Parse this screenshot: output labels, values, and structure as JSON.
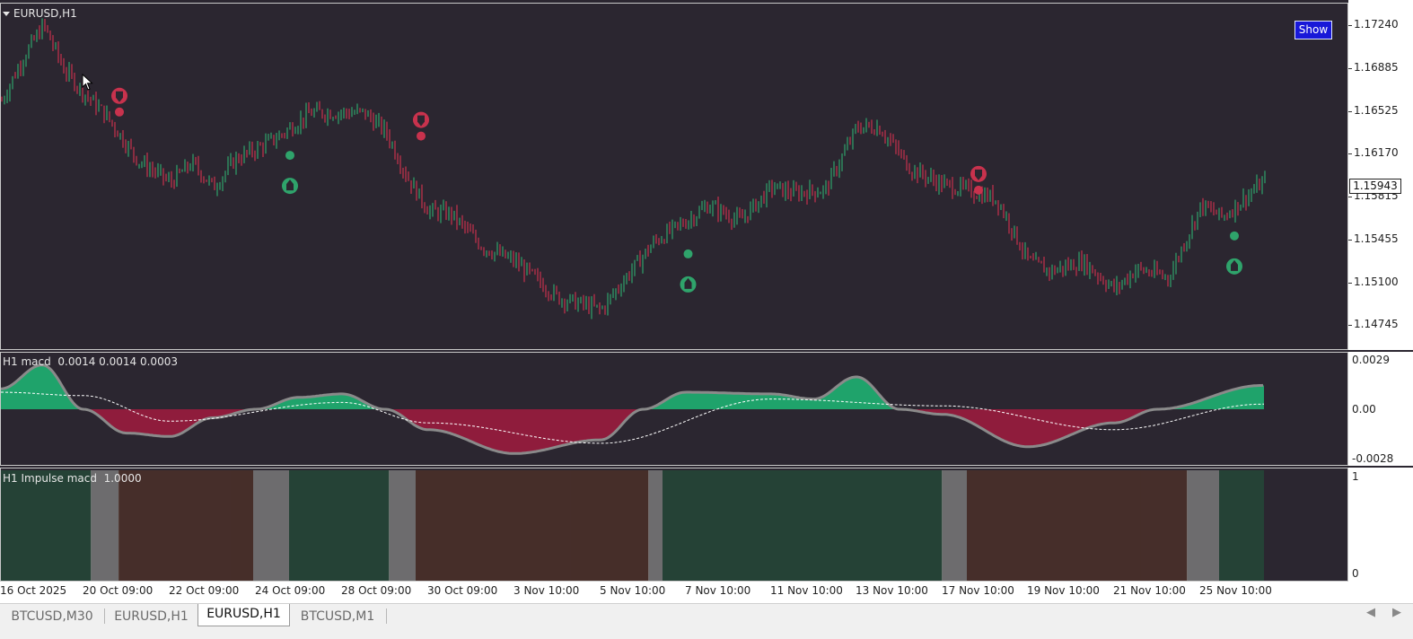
{
  "colors": {
    "background": "#2b2630",
    "bull_candle": "#2fa36b",
    "bear_candle": "#c8324d",
    "macd_pos": "#1fa36b",
    "macd_neg": "#8f1c3c",
    "impulse_green": "#244a38",
    "impulse_red": "#4d3028",
    "impulse_gray": "#7e7e7e",
    "show_button": "#1818d8"
  },
  "chart": {
    "symbol_title": "EURUSD,H1",
    "show_button": "Show",
    "current_price": "1.15943",
    "price_axis": [
      "1.17240",
      "1.16885",
      "1.16525",
      "1.16170",
      "1.15815",
      "1.15455",
      "1.15100",
      "1.14745"
    ],
    "price_range": [
      1.1459,
      1.1739
    ]
  },
  "macd_pane": {
    "title": "H1 macd",
    "values": "0.0014 0.0014 0.0003",
    "axis": [
      "0.0029",
      "0.00",
      "-0.0028"
    ]
  },
  "impulse_pane": {
    "title": "H1 Impulse macd",
    "value": "1.0000",
    "axis": [
      "1",
      "0"
    ]
  },
  "time_axis": [
    "16 Oct 2025",
    "20 Oct 09:00",
    "22 Oct 09:00",
    "24 Oct 09:00",
    "28 Oct 09:00",
    "30 Oct 09:00",
    "3 Nov 10:00",
    "5 Nov 10:00",
    "7 Nov 10:00",
    "11 Nov 10:00",
    "13 Nov 10:00",
    "17 Nov 10:00",
    "19 Nov 10:00",
    "21 Nov 10:00",
    "25 Nov 10:00"
  ],
  "tabs": [
    {
      "label": "BTCUSD,M30",
      "active": false
    },
    {
      "label": "EURUSD,H1",
      "active": false
    },
    {
      "label": "EURUSD,H1",
      "active": true
    },
    {
      "label": "BTCUSD,M1",
      "active": false
    }
  ],
  "chart_data": {
    "type": "candlestick",
    "symbol": "EURUSD",
    "timeframe": "H1",
    "price_path": [
      {
        "t": "16 Oct 2025",
        "p": 1.1662
      },
      {
        "t": "16 Oct 2025",
        "p": 1.1698
      },
      {
        "t": "17 Oct",
        "p": 1.1725
      },
      {
        "t": "17 Oct",
        "p": 1.1688
      },
      {
        "t": "20 Oct 09:00",
        "p": 1.1668
      },
      {
        "t": "20 Oct 09:00",
        "p": 1.165
      },
      {
        "t": "21 Oct",
        "p": 1.1612
      },
      {
        "t": "22 Oct 09:00",
        "p": 1.1594
      },
      {
        "t": "22 Oct 09:00",
        "p": 1.161
      },
      {
        "t": "23 Oct",
        "p": 1.159
      },
      {
        "t": "23 Oct",
        "p": 1.1613
      },
      {
        "t": "24 Oct 09:00",
        "p": 1.1622
      },
      {
        "t": "24 Oct 09:00",
        "p": 1.1632
      },
      {
        "t": "27 Oct",
        "p": 1.1652
      },
      {
        "t": "28 Oct 09:00",
        "p": 1.1652
      },
      {
        "t": "28 Oct 09:00",
        "p": 1.1652
      },
      {
        "t": "29 Oct",
        "p": 1.1636
      },
      {
        "t": "29 Oct",
        "p": 1.1598
      },
      {
        "t": "30 Oct 09:00",
        "p": 1.157
      },
      {
        "t": "30 Oct 09:00",
        "p": 1.1568
      },
      {
        "t": "31 Oct",
        "p": 1.154
      },
      {
        "t": "3 Nov 10:00",
        "p": 1.1528
      },
      {
        "t": "4 Nov",
        "p": 1.1498
      },
      {
        "t": "5 Nov 10:00",
        "p": 1.1488
      },
      {
        "t": "5 Nov 10:00",
        "p": 1.1512
      },
      {
        "t": "6 Nov",
        "p": 1.1545
      },
      {
        "t": "7 Nov 10:00",
        "p": 1.1562
      },
      {
        "t": "7 Nov 10:00",
        "p": 1.1575
      },
      {
        "t": "10 Nov",
        "p": 1.1562
      },
      {
        "t": "11 Nov 10:00",
        "p": 1.159
      },
      {
        "t": "11 Nov 10:00",
        "p": 1.1585
      },
      {
        "t": "12 Nov",
        "p": 1.1588
      },
      {
        "t": "13 Nov 10:00",
        "p": 1.164
      },
      {
        "t": "13 Nov 10:00",
        "p": 1.164
      },
      {
        "t": "14 Nov",
        "p": 1.1605
      },
      {
        "t": "17 Nov 10:00",
        "p": 1.1592
      },
      {
        "t": "17 Nov 10:00",
        "p": 1.1588
      },
      {
        "t": "18 Nov",
        "p": 1.158
      },
      {
        "t": "19 Nov 10:00",
        "p": 1.1528
      },
      {
        "t": "19 Nov 10:00",
        "p": 1.152
      },
      {
        "t": "20 Nov",
        "p": 1.1528
      },
      {
        "t": "21 Nov 10:00",
        "p": 1.1505
      },
      {
        "t": "21 Nov 10:00",
        "p": 1.1522
      },
      {
        "t": "24 Nov",
        "p": 1.1515
      },
      {
        "t": "25 Nov 10:00",
        "p": 1.1575
      },
      {
        "t": "25 Nov 10:00",
        "p": 1.1565
      },
      {
        "t": "26 Nov",
        "p": 1.1594
      }
    ],
    "signals": [
      {
        "kind": "sell",
        "near": "20 Oct 09:00",
        "price": 1.166
      },
      {
        "kind": "buy",
        "near": "24 Oct 09:00",
        "price": 1.1612
      },
      {
        "kind": "sell",
        "near": "29 Oct",
        "price": 1.164
      },
      {
        "kind": "buy",
        "near": "6 Nov",
        "price": 1.153
      },
      {
        "kind": "sell",
        "near": "17 Nov 10:00",
        "price": 1.1595
      },
      {
        "kind": "buy",
        "near": "25 Nov 10:00",
        "price": 1.1545
      }
    ],
    "macd_hist_path": [
      {
        "t": "16 Oct 2025",
        "v": 0.0012
      },
      {
        "t": "17 Oct",
        "v": 0.0026
      },
      {
        "t": "20 Oct 09:00",
        "v": 0.0
      },
      {
        "t": "21 Oct",
        "v": -0.0014
      },
      {
        "t": "22 Oct 09:00",
        "v": -0.0016
      },
      {
        "t": "23 Oct",
        "v": -0.0005
      },
      {
        "t": "24 Oct 09:00",
        "v": 0.0
      },
      {
        "t": "27 Oct",
        "v": 0.0007
      },
      {
        "t": "28 Oct 09:00",
        "v": 0.0009
      },
      {
        "t": "29 Oct",
        "v": 0.0
      },
      {
        "t": "30 Oct 09:00",
        "v": -0.0012
      },
      {
        "t": "3 Nov 10:00",
        "v": -0.0026
      },
      {
        "t": "5 Nov 10:00",
        "v": -0.0018
      },
      {
        "t": "6 Nov",
        "v": 0.0
      },
      {
        "t": "7 Nov 10:00",
        "v": 0.001
      },
      {
        "t": "11 Nov 10:00",
        "v": 0.0009
      },
      {
        "t": "12 Nov",
        "v": 0.0006
      },
      {
        "t": "13 Nov 10:00",
        "v": 0.0019
      },
      {
        "t": "14 Nov",
        "v": 0.0
      },
      {
        "t": "17 Nov 10:00",
        "v": -0.0003
      },
      {
        "t": "19 Nov 10:00",
        "v": -0.0022
      },
      {
        "t": "21 Nov 10:00",
        "v": -0.0008
      },
      {
        "t": "24 Nov",
        "v": 0.0
      },
      {
        "t": "25 Nov 10:00",
        "v": 0.0014
      }
    ],
    "macd_signal_path": [
      {
        "t": "16 Oct 2025",
        "v": 0.001
      },
      {
        "t": "20 Oct 09:00",
        "v": 0.0008
      },
      {
        "t": "22 Oct 09:00",
        "v": -0.0007
      },
      {
        "t": "28 Oct 09:00",
        "v": 0.0004
      },
      {
        "t": "30 Oct 09:00",
        "v": -0.0008
      },
      {
        "t": "5 Nov 10:00",
        "v": -0.002
      },
      {
        "t": "11 Nov 10:00",
        "v": 0.0006
      },
      {
        "t": "17 Nov 10:00",
        "v": 0.0002
      },
      {
        "t": "21 Nov 10:00",
        "v": -0.0012
      },
      {
        "t": "25 Nov 10:00",
        "v": 0.0003
      }
    ],
    "impulse_segments": [
      {
        "from": "16 Oct 2025",
        "state": "green"
      },
      {
        "from": "20 Oct 09:00",
        "state": "gray"
      },
      {
        "from": "20 Oct 09:00",
        "state": "red"
      },
      {
        "from": "24 Oct 09:00",
        "state": "gray"
      },
      {
        "from": "24 Oct 09:00",
        "state": "green"
      },
      {
        "from": "29 Oct",
        "state": "gray"
      },
      {
        "from": "30 Oct 09:00",
        "state": "red"
      },
      {
        "from": "6 Nov",
        "state": "gray"
      },
      {
        "from": "7 Nov 10:00",
        "state": "green"
      },
      {
        "from": "17 Nov 10:00",
        "state": "gray"
      },
      {
        "from": "17 Nov 10:00",
        "state": "red"
      },
      {
        "from": "25 Nov 10:00",
        "state": "gray"
      },
      {
        "from": "25 Nov 10:00",
        "state": "green"
      }
    ],
    "impulse_ylim": [
      0,
      1
    ]
  }
}
